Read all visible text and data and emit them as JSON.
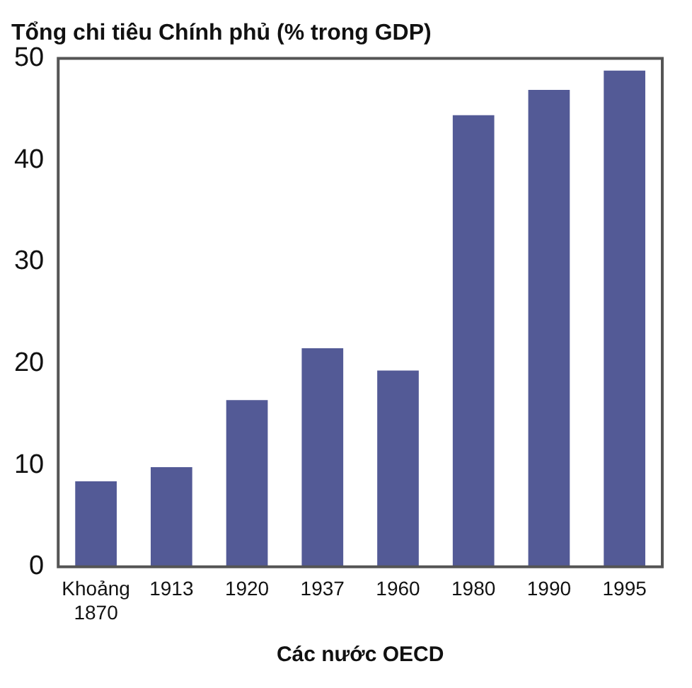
{
  "chart_data": {
    "type": "bar",
    "title": "Tổng chi tiêu Chính phủ (% trong GDP)",
    "xlabel": "Các nước OECD",
    "categories": [
      "Khoảng 1870",
      "1913",
      "1920",
      "1937",
      "1960",
      "1980",
      "1990",
      "1995"
    ],
    "values": [
      8.4,
      9.8,
      16.4,
      21.5,
      19.3,
      44.4,
      46.9,
      48.8
    ],
    "color": "#535a96",
    "ylim": [
      0,
      50
    ],
    "yticks": [
      0,
      10,
      20,
      30,
      40,
      50
    ],
    "grid": false,
    "legend": false
  }
}
